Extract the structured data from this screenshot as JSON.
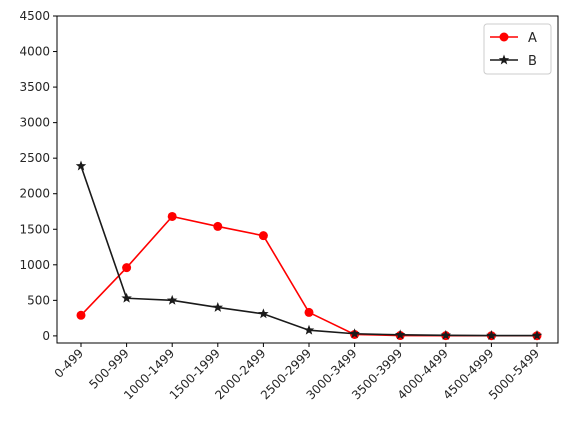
{
  "chart_data": {
    "type": "line",
    "categories": [
      "0-499",
      "500-999",
      "1000-1499",
      "1500-1999",
      "2000-2499",
      "2500-2999",
      "3000-3499",
      "3500-3999",
      "4000-4499",
      "4500-4999",
      "5000-5499"
    ],
    "ylim": [
      -100,
      4500
    ],
    "yticks": [
      0,
      500,
      1000,
      1500,
      2000,
      2500,
      3000,
      3500,
      4000,
      4500
    ],
    "grid": false,
    "legend": "top-right",
    "series": [
      {
        "name": "A",
        "color": "#ff0000",
        "marker": "circle",
        "values": [
          290,
          960,
          1680,
          1540,
          1410,
          330,
          20,
          5,
          3,
          2,
          2
        ]
      },
      {
        "name": "B",
        "color": "#1a1a1a",
        "marker": "star",
        "values": [
          2390,
          530,
          500,
          400,
          310,
          80,
          30,
          15,
          8,
          5,
          5
        ]
      }
    ]
  }
}
